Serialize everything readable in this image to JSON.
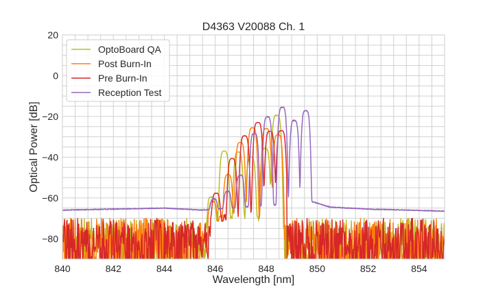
{
  "chart_data": {
    "type": "line",
    "title": "D4363 V20088 Ch. 1",
    "xlabel": "Wavelength [nm]",
    "ylabel": "Optical Power [dB]",
    "xlim": [
      840,
      855
    ],
    "ylim": [
      -90,
      20
    ],
    "xticks": [
      840,
      842,
      844,
      846,
      848,
      850,
      852,
      854
    ],
    "yticks": [
      -80,
      -60,
      -40,
      -20,
      0,
      20
    ],
    "xtick_labels": [
      "840",
      "842",
      "844",
      "846",
      "848",
      "850",
      "852",
      "854"
    ],
    "ytick_labels": [
      "−80",
      "−60",
      "−40",
      "−20",
      "0",
      "20"
    ],
    "grid": true,
    "minor_grid_step": {
      "x": 0.5,
      "y": 5
    },
    "legend_position": "top-left",
    "series": [
      {
        "name": "OptoBoard QA",
        "color": "#bcbd22",
        "noise_floor": true,
        "band": [
          845.4,
          848.7
        ],
        "peaks": [
          [
            845.85,
            -60
          ],
          [
            846.35,
            -37
          ],
          [
            846.9,
            -37.5
          ],
          [
            847.4,
            -40
          ],
          [
            847.96,
            -35.7
          ],
          [
            848.41,
            -19.4
          ]
        ]
      },
      {
        "name": "Post Burn-In",
        "color": "#ff7f0e",
        "noise_floor": true,
        "band": [
          845.4,
          848.75
        ],
        "peaks": [
          [
            845.9,
            -62.6
          ],
          [
            846.5,
            -48.6
          ],
          [
            846.98,
            -32.8
          ],
          [
            847.46,
            -25.6
          ],
          [
            848.0,
            -26
          ],
          [
            848.46,
            -29
          ]
        ]
      },
      {
        "name": "Pre Burn-In",
        "color": "#d62728",
        "noise_floor": true,
        "band": [
          845.5,
          848.8
        ],
        "peaks": [
          [
            846.03,
            -58
          ],
          [
            846.66,
            -40.7
          ],
          [
            847.15,
            -29.5
          ],
          [
            847.67,
            -23
          ],
          [
            848.14,
            -27.3
          ],
          [
            848.59,
            -27
          ]
        ]
      },
      {
        "name": "Reception Test",
        "color": "#9467bd",
        "noise_floor": false,
        "floor": [
          [
            840,
            -66
          ],
          [
            844,
            -65
          ],
          [
            845.5,
            -66
          ],
          [
            849.85,
            -62
          ],
          [
            850.5,
            -64.5
          ],
          [
            852,
            -65.5
          ],
          [
            855,
            -66.5
          ]
        ],
        "peaks": [
          [
            845.94,
            -62
          ],
          [
            846.48,
            -57.5
          ],
          [
            846.98,
            -49
          ],
          [
            847.53,
            -28.4
          ],
          [
            848.05,
            -20.2
          ],
          [
            848.63,
            -15.5
          ],
          [
            849.1,
            -22
          ],
          [
            849.55,
            -17.2
          ]
        ]
      }
    ]
  }
}
